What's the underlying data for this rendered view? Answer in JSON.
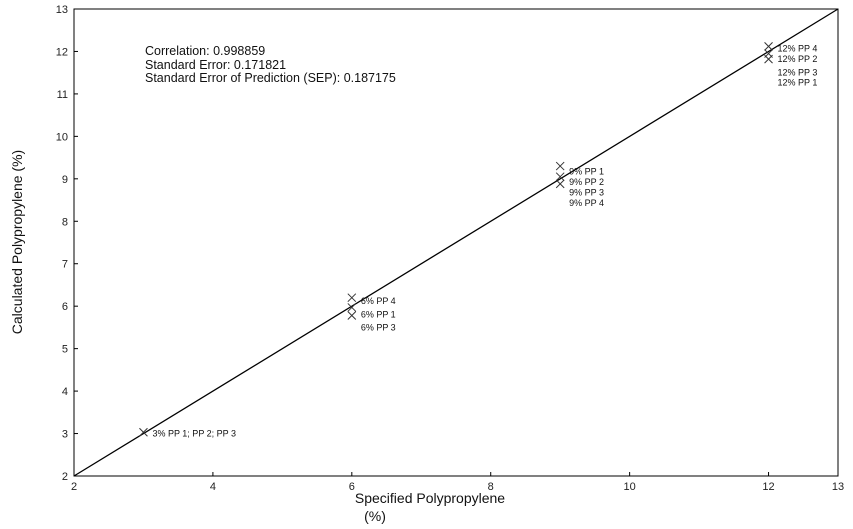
{
  "chart_data": {
    "type": "scatter",
    "xlabel_line1": "Specified Polypropylene",
    "xlabel_line2": "(%)",
    "ylabel": "Calculated Polypropylene (%)",
    "xlim": [
      2,
      13
    ],
    "ylim": [
      2,
      13
    ],
    "xticks": [
      2,
      4,
      6,
      8,
      10,
      12,
      13
    ],
    "yticks": [
      2,
      3,
      4,
      5,
      6,
      7,
      8,
      9,
      10,
      11,
      12,
      13
    ],
    "stats": {
      "correlation": "Correlation: 0.998859",
      "standard_error": "Standard Error: 0.171821",
      "sep": "Standard Error of Prediction (SEP): 0.187175"
    },
    "regression_line": {
      "x": [
        2,
        13
      ],
      "y": [
        2,
        13
      ]
    },
    "points": [
      {
        "x": 3,
        "y": 3.03
      },
      {
        "x": 6,
        "y": 6.2
      },
      {
        "x": 6,
        "y": 5.97
      },
      {
        "x": 6,
        "y": 5.78
      },
      {
        "x": 9,
        "y": 9.3
      },
      {
        "x": 9,
        "y": 9.05
      },
      {
        "x": 9,
        "y": 8.88
      },
      {
        "x": 12,
        "y": 12.12
      },
      {
        "x": 12,
        "y": 11.95
      },
      {
        "x": 12,
        "y": 11.82
      }
    ],
    "point_labels": [
      {
        "x": 3,
        "y": 3.0,
        "text": "3% PP 1; PP 2; PP 3"
      },
      {
        "x": 6,
        "y": 6.12,
        "text": "6% PP 4"
      },
      {
        "x": 6,
        "y": 5.8,
        "text": "6% PP 1"
      },
      {
        "x": 6,
        "y": 5.5,
        "text": "6% PP 3"
      },
      {
        "x": 9,
        "y": 9.17,
        "text": "9% PP 1"
      },
      {
        "x": 9,
        "y": 8.93,
        "text": "9% PP 2"
      },
      {
        "x": 9,
        "y": 8.68,
        "text": "9% PP 3"
      },
      {
        "x": 9,
        "y": 8.43,
        "text": "9% PP 4"
      },
      {
        "x": 12,
        "y": 12.07,
        "text": "12% PP 4"
      },
      {
        "x": 12,
        "y": 11.82,
        "text": "12% PP 2"
      },
      {
        "x": 12,
        "y": 11.5,
        "text": "12% PP 3"
      },
      {
        "x": 12,
        "y": 11.27,
        "text": "12% PP 1"
      }
    ]
  }
}
